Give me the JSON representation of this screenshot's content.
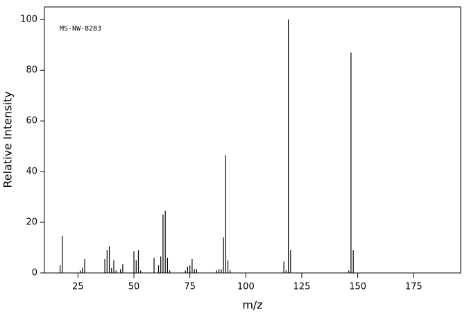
{
  "chart_data": {
    "type": "stick",
    "annotation": "MS-NW-8283",
    "x_label": "m/z",
    "y_label": "Relative Intensity",
    "x": [
      17,
      18,
      26,
      27,
      28,
      37,
      38,
      39,
      40,
      41,
      42,
      44,
      45,
      50,
      51,
      52,
      53,
      59,
      61,
      62,
      63,
      64,
      65,
      66,
      73,
      74,
      75,
      76,
      77,
      78,
      87,
      88,
      89,
      90,
      91,
      92,
      93,
      117,
      118,
      119,
      120,
      146,
      147,
      148
    ],
    "values": [
      3,
      14.5,
      1,
      2,
      5.5,
      5.5,
      9,
      10.5,
      2,
      5,
      1,
      1.5,
      3.5,
      8.5,
      5,
      9,
      1,
      6,
      3,
      6.5,
      23,
      24.5,
      6,
      1,
      1,
      2.5,
      3,
      5.5,
      1.5,
      1.5,
      1,
      1.5,
      1.5,
      14,
      46.5,
      5,
      1,
      4.5,
      1,
      100,
      9,
      1,
      87,
      9
    ],
    "color": "#000000",
    "xlim": [
      10,
      196
    ],
    "ylim": [
      0,
      105
    ],
    "xticks": [
      25,
      50,
      75,
      100,
      125,
      150,
      175
    ],
    "yticks": [
      0,
      20,
      40,
      60,
      80,
      100
    ],
    "grid": false
  }
}
